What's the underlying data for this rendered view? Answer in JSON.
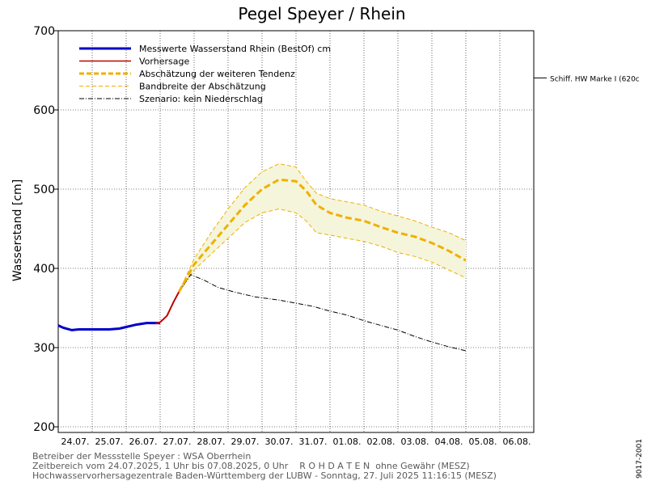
{
  "chart_data": {
    "type": "line",
    "title": "Pegel Speyer / Rhein",
    "ylabel": "Wasserstand [cm]",
    "ylim": [
      200,
      700
    ],
    "yticks": [
      200,
      300,
      400,
      500,
      600,
      700
    ],
    "x_days": [
      "24.07.",
      "25.07.",
      "26.07.",
      "27.07.",
      "28.07.",
      "29.07.",
      "30.07.",
      "31.07.",
      "01.08.",
      "02.08.",
      "03.08.",
      "04.08.",
      "05.08.",
      "06.08."
    ],
    "grid": true,
    "legend_position": "top-left",
    "legend": [
      {
        "label": "Messwerte Wasserstand Rhein (BestOf)   cm",
        "style": "measured"
      },
      {
        "label": "Vorhersage",
        "style": "forecast"
      },
      {
        "label": "Abschätzung der weiteren Tendenz",
        "style": "tendency"
      },
      {
        "label": "Bandbreite der Abschätzung",
        "style": "band"
      },
      {
        "label": "Szenario: kein Niederschlag",
        "style": "scenario"
      }
    ],
    "reference_line": {
      "label": "Schiff. HW Marke I (620c",
      "value": 620
    },
    "series": [
      {
        "name": "Messwerte Wasserstand Rhein (BestOf)   cm",
        "color": "#0000c8",
        "points": [
          [
            0.0,
            328
          ],
          [
            0.15,
            325
          ],
          [
            0.4,
            322
          ],
          [
            0.6,
            323
          ],
          [
            1.0,
            323
          ],
          [
            1.5,
            323
          ],
          [
            1.8,
            324
          ],
          [
            2.0,
            326
          ],
          [
            2.3,
            329
          ],
          [
            2.6,
            331
          ],
          [
            2.9,
            331
          ],
          [
            3.0,
            331
          ]
        ]
      },
      {
        "name": "Vorhersage",
        "color": "#c00000",
        "points": [
          [
            2.85,
            330
          ],
          [
            3.0,
            332
          ],
          [
            3.2,
            340
          ],
          [
            3.4,
            358
          ],
          [
            3.55,
            370
          ]
        ]
      },
      {
        "name": "Abschätzung der weiteren Tendenz",
        "color": "#f0b000",
        "points": [
          [
            3.55,
            370
          ],
          [
            4.0,
            405
          ],
          [
            4.5,
            430
          ],
          [
            5.0,
            455
          ],
          [
            5.5,
            480
          ],
          [
            6.0,
            500
          ],
          [
            6.5,
            512
          ],
          [
            7.0,
            510
          ],
          [
            7.3,
            498
          ],
          [
            7.6,
            480
          ],
          [
            8.0,
            470
          ],
          [
            8.5,
            464
          ],
          [
            9.0,
            460
          ],
          [
            9.5,
            452
          ],
          [
            10.0,
            445
          ],
          [
            10.5,
            440
          ],
          [
            11.0,
            432
          ],
          [
            11.5,
            422
          ],
          [
            12.0,
            410
          ]
        ]
      },
      {
        "name": "Bandbreite der Abschätzung",
        "color": "#f0b000",
        "fill": "#f5f5dc",
        "upper": [
          [
            3.55,
            370
          ],
          [
            4.0,
            412
          ],
          [
            4.5,
            445
          ],
          [
            5.0,
            475
          ],
          [
            5.5,
            502
          ],
          [
            6.0,
            522
          ],
          [
            6.5,
            532
          ],
          [
            7.0,
            528
          ],
          [
            7.3,
            510
          ],
          [
            7.6,
            495
          ],
          [
            8.0,
            488
          ],
          [
            8.5,
            484
          ],
          [
            9.0,
            480
          ],
          [
            9.5,
            472
          ],
          [
            10.0,
            466
          ],
          [
            10.5,
            460
          ],
          [
            11.0,
            452
          ],
          [
            11.5,
            445
          ],
          [
            12.0,
            435
          ]
        ],
        "lower": [
          [
            3.55,
            370
          ],
          [
            4.0,
            398
          ],
          [
            4.5,
            418
          ],
          [
            5.0,
            438
          ],
          [
            5.5,
            458
          ],
          [
            6.0,
            470
          ],
          [
            6.5,
            475
          ],
          [
            7.0,
            470
          ],
          [
            7.3,
            460
          ],
          [
            7.6,
            445
          ],
          [
            8.0,
            442
          ],
          [
            8.5,
            438
          ],
          [
            9.0,
            434
          ],
          [
            9.5,
            428
          ],
          [
            10.0,
            420
          ],
          [
            10.5,
            415
          ],
          [
            11.0,
            408
          ],
          [
            11.5,
            398
          ],
          [
            12.0,
            388
          ]
        ]
      },
      {
        "name": "Szenario: kein Niederschlag",
        "color": "#000000",
        "points": [
          [
            3.55,
            370
          ],
          [
            3.9,
            392
          ],
          [
            4.3,
            385
          ],
          [
            4.7,
            376
          ],
          [
            5.2,
            370
          ],
          [
            5.8,
            364
          ],
          [
            6.5,
            360
          ],
          [
            7.0,
            356
          ],
          [
            7.5,
            352
          ],
          [
            8.0,
            346
          ],
          [
            8.5,
            341
          ],
          [
            9.0,
            334
          ],
          [
            9.5,
            328
          ],
          [
            10.0,
            322
          ],
          [
            10.5,
            314
          ],
          [
            11.0,
            307
          ],
          [
            11.5,
            301
          ],
          [
            12.0,
            296
          ]
        ]
      }
    ]
  },
  "footer": {
    "line1": "Betreiber der Messstelle Speyer : WSA Oberrhein",
    "line2": "Zeitbereich vom 24.07.2025, 1 Uhr bis 07.08.2025, 0 Uhr    R O H D A T E N  ohne Gewähr (MESZ)",
    "line3": "Hochwasservorhersagezentrale Baden-Württemberg der LUBW - Sonntag, 27. Juli 2025 11:16:15 (MESZ)"
  },
  "side_code": "9017-2001"
}
